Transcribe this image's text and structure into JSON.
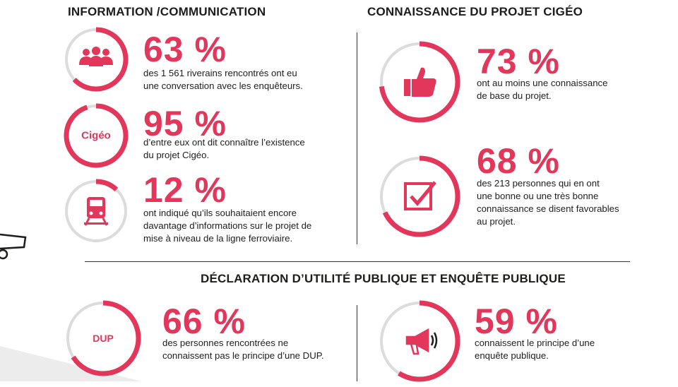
{
  "colors": {
    "accent": "#e2375a",
    "track": "#dcdcdc",
    "text": "#1d1d1b"
  },
  "sections": {
    "information": {
      "title": "INFORMATION /COMMUNICATION",
      "stats": [
        {
          "icon": "people-group-icon",
          "value": 63,
          "percent": "63 %",
          "lines": [
            "des 1 561 riverains rencontrés ont eu",
            "une conversation avec les enquêteurs."
          ]
        },
        {
          "icon": "cigeo-label",
          "label": "Cigéo",
          "value": 95,
          "percent": "95 %",
          "lines": [
            "d’entre eux ont dit connaître l’existence",
            "du projet Cigéo."
          ]
        },
        {
          "icon": "train-icon",
          "value": 12,
          "percent": "12 %",
          "lines": [
            "ont indiqué qu’ils souhaitaient encore",
            "davantage d’informations sur le projet de",
            "mise à niveau de la ligne ferroviaire."
          ]
        }
      ]
    },
    "connaissance": {
      "title": "CONNAISSANCE DU PROJET CIGÉO",
      "stats": [
        {
          "icon": "thumbs-up-icon",
          "value": 73,
          "percent": "73 %",
          "lines": [
            "ont au moins une connaissance",
            "de base du projet."
          ]
        },
        {
          "icon": "checkbox-icon",
          "value": 68,
          "percent": "68 %",
          "lines": [
            "des 213 personnes qui en ont",
            "une bonne ou une très bonne",
            "connaissance se disent favorables",
            "au projet."
          ]
        }
      ]
    },
    "declaration": {
      "title": "DÉCLARATION D’UTILITÉ PUBLIQUE ET ENQUÊTE PUBLIQUE",
      "stats": [
        {
          "icon": "dup-label",
          "label": "DUP",
          "value": 66,
          "percent": "66 %",
          "lines": [
            "des personnes rencontrées ne",
            "connaissent pas le principe d’une DUP."
          ]
        },
        {
          "icon": "megaphone-icon",
          "value": 59,
          "percent": "59 %",
          "lines": [
            "connaissent le principe d’une",
            "enquête publique."
          ]
        }
      ]
    }
  }
}
